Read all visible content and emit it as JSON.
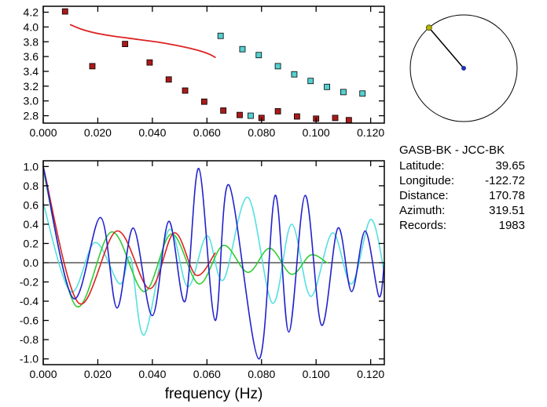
{
  "info": {
    "title": "GASB-BK - JCC-BK",
    "rows": [
      {
        "label": "Latitude:",
        "value": "39.65"
      },
      {
        "label": "Longitude:",
        "value": "-122.72"
      },
      {
        "label": "Distance:",
        "value": "170.78"
      },
      {
        "label": "Azimuth:",
        "value": "319.51"
      },
      {
        "label": "Records:",
        "value": "1983"
      }
    ]
  },
  "compass": {
    "azimuth_deg": 319.51,
    "center_dot_color": "#2233aa",
    "end_dot_color": "#b5b500",
    "circle_color": "#000000"
  },
  "chart_data": [
    {
      "id": "group-velocity-dispersion",
      "type": "scatter",
      "title": "",
      "xlabel": "",
      "ylabel": "",
      "xlim": [
        0.0,
        0.125
      ],
      "ylim": [
        2.7,
        4.28
      ],
      "xticks": [
        0.0,
        0.02,
        0.04,
        0.06,
        0.08,
        0.1,
        0.12
      ],
      "xtick_labels": [
        "0.000",
        "0.020",
        "0.040",
        "0.060",
        "0.080",
        "0.100",
        "0.120"
      ],
      "yticks": [
        2.8,
        3.0,
        3.2,
        3.4,
        3.6,
        3.8,
        4.0,
        4.2
      ],
      "ytick_labels": [
        "2.8",
        "3.0",
        "3.2",
        "3.4",
        "3.6",
        "3.8",
        "4.0",
        "4.2"
      ],
      "grid": false,
      "legend": "none",
      "zero_line": false,
      "series": [
        {
          "name": "reference-curve",
          "mode": "line",
          "smooth": true,
          "color": "#dd2222",
          "width": 1.8,
          "points": [
            [
              0.01,
              4.03
            ],
            [
              0.014,
              3.97
            ],
            [
              0.019,
              3.92
            ],
            [
              0.025,
              3.88
            ],
            [
              0.031,
              3.85
            ],
            [
              0.037,
              3.82
            ],
            [
              0.043,
              3.79
            ],
            [
              0.049,
              3.75
            ],
            [
              0.054,
              3.71
            ],
            [
              0.058,
              3.67
            ],
            [
              0.061,
              3.63
            ],
            [
              0.063,
              3.59
            ]
          ]
        },
        {
          "name": "measured-group-velocity",
          "mode": "markers",
          "marker": "square",
          "color": "#aa1a1a",
          "points": [
            [
              0.008,
              4.21
            ],
            [
              0.018,
              3.47
            ],
            [
              0.03,
              3.77
            ],
            [
              0.039,
              3.52
            ],
            [
              0.046,
              3.29
            ],
            [
              0.052,
              3.14
            ],
            [
              0.059,
              2.99
            ],
            [
              0.066,
              2.87
            ],
            [
              0.072,
              2.81
            ],
            [
              0.08,
              2.77
            ],
            [
              0.086,
              2.86
            ],
            [
              0.093,
              2.79
            ],
            [
              0.1,
              2.76
            ],
            [
              0.107,
              2.77
            ],
            [
              0.112,
              2.74
            ]
          ]
        },
        {
          "name": "secondary-group-velocity",
          "mode": "markers",
          "marker": "square",
          "color": "#55d0d0",
          "points": [
            [
              0.065,
              3.88
            ],
            [
              0.073,
              3.7
            ],
            [
              0.079,
              3.62
            ],
            [
              0.086,
              3.47
            ],
            [
              0.092,
              3.36
            ],
            [
              0.098,
              3.27
            ],
            [
              0.104,
              3.19
            ],
            [
              0.11,
              3.12
            ],
            [
              0.117,
              3.1
            ],
            [
              0.076,
              2.8
            ]
          ]
        }
      ]
    },
    {
      "id": "narrowband-waveforms",
      "type": "line",
      "title": "",
      "xlabel": "frequency (Hz)",
      "ylabel": "",
      "xlim": [
        0.0,
        0.125
      ],
      "ylim": [
        -1.06,
        1.06
      ],
      "xticks": [
        0.0,
        0.02,
        0.04,
        0.06,
        0.08,
        0.1,
        0.12
      ],
      "xtick_labels": [
        "0.000",
        "0.020",
        "0.040",
        "0.060",
        "0.080",
        "0.100",
        "0.120"
      ],
      "yticks": [
        -1.0,
        -0.8,
        -0.6,
        -0.4,
        -0.2,
        0.0,
        0.2,
        0.4,
        0.6,
        0.8,
        1.0
      ],
      "ytick_labels": [
        "-1.0",
        "-0.8",
        "-0.6",
        "-0.4",
        "-0.2",
        "0.0",
        "0.2",
        "0.4",
        "0.6",
        "0.8",
        "1.0"
      ],
      "grid": false,
      "legend": "none",
      "zero_line": true,
      "series": [
        {
          "name": "cyan-trace",
          "mode": "line",
          "smooth": true,
          "color": "#55e0e0",
          "width": 1.6,
          "points": [
            [
              0.0,
              0.62
            ],
            [
              0.01,
              -0.3
            ],
            [
              0.019,
              0.21
            ],
            [
              0.028,
              -0.22
            ],
            [
              0.032,
              0.05
            ],
            [
              0.037,
              -0.75
            ],
            [
              0.046,
              0.34
            ],
            [
              0.053,
              -0.25
            ],
            [
              0.06,
              0.28
            ],
            [
              0.066,
              -0.18
            ],
            [
              0.075,
              0.68
            ],
            [
              0.084,
              -0.42
            ],
            [
              0.091,
              0.4
            ],
            [
              0.098,
              -0.35
            ],
            [
              0.106,
              0.31
            ],
            [
              0.113,
              -0.22
            ],
            [
              0.12,
              0.45
            ],
            [
              0.125,
              -0.1
            ]
          ]
        },
        {
          "name": "green-trace",
          "mode": "line",
          "smooth": true,
          "color": "#33cc33",
          "width": 1.6,
          "points": [
            [
              0.0,
              0.97
            ],
            [
              0.012,
              -0.45
            ],
            [
              0.025,
              0.32
            ],
            [
              0.037,
              -0.3
            ],
            [
              0.047,
              0.3
            ],
            [
              0.057,
              -0.22
            ],
            [
              0.066,
              0.18
            ],
            [
              0.075,
              -0.1
            ],
            [
              0.083,
              0.15
            ],
            [
              0.091,
              -0.12
            ],
            [
              0.098,
              0.08
            ],
            [
              0.104,
              0.0
            ]
          ]
        },
        {
          "name": "red-trace",
          "mode": "line",
          "smooth": true,
          "color": "#dd2222",
          "width": 1.6,
          "points": [
            [
              0.0,
              1.0
            ],
            [
              0.013,
              -0.42
            ],
            [
              0.027,
              0.33
            ],
            [
              0.039,
              -0.27
            ],
            [
              0.048,
              0.31
            ],
            [
              0.056,
              -0.13
            ],
            [
              0.063,
              0.1
            ]
          ]
        },
        {
          "name": "blue-trace",
          "mode": "line",
          "smooth": true,
          "color": "#2222cc",
          "width": 1.6,
          "points": [
            [
              0.0,
              1.0
            ],
            [
              0.011,
              -0.37
            ],
            [
              0.021,
              0.47
            ],
            [
              0.027,
              -0.47
            ],
            [
              0.033,
              0.36
            ],
            [
              0.04,
              -0.55
            ],
            [
              0.046,
              0.43
            ],
            [
              0.052,
              -0.4
            ],
            [
              0.057,
              0.98
            ],
            [
              0.063,
              -0.6
            ],
            [
              0.068,
              0.81
            ],
            [
              0.079,
              -1.0
            ],
            [
              0.085,
              0.7
            ],
            [
              0.09,
              -0.72
            ],
            [
              0.096,
              0.7
            ],
            [
              0.102,
              -0.65
            ],
            [
              0.108,
              0.36
            ],
            [
              0.113,
              -0.3
            ],
            [
              0.118,
              0.33
            ],
            [
              0.123,
              -0.35
            ],
            [
              0.125,
              0.0
            ]
          ]
        }
      ]
    }
  ]
}
